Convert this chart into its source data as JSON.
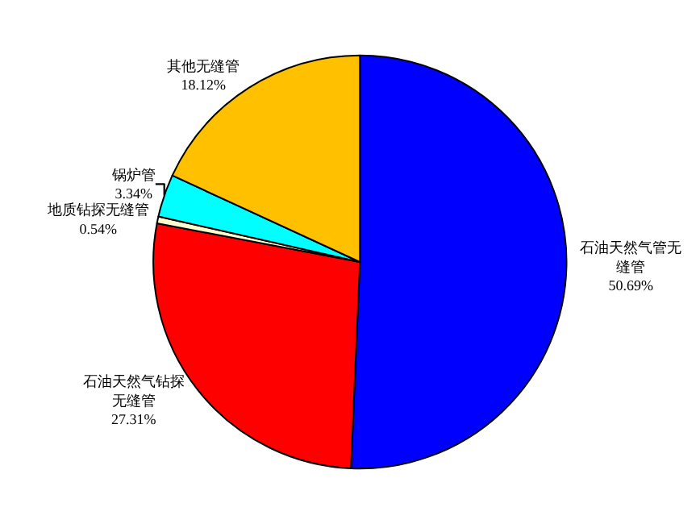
{
  "chart_data": {
    "type": "pie",
    "categories": [
      "石油天然气管无缝管",
      "石油天然气钻探无缝管",
      "地质钻探无缝管",
      "锅炉管",
      "其他无缝管"
    ],
    "values": [
      50.69,
      27.31,
      0.54,
      3.34,
      18.12
    ],
    "colors": [
      "#0000ff",
      "#ff0000",
      "#ffffcc",
      "#00ffff",
      "#ffc000"
    ],
    "value_labels": [
      "50.69%",
      "27.31%",
      "0.54%",
      "3.34%",
      "18.12%"
    ],
    "legend": false
  }
}
